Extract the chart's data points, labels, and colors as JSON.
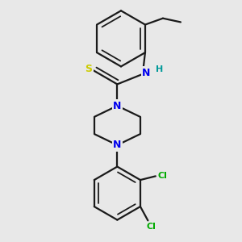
{
  "background_color": "#e8e8e8",
  "bond_color": "#1a1a1a",
  "bond_width": 1.6,
  "atom_colors": {
    "N": "#0000ee",
    "S": "#cccc00",
    "Cl": "#00aa00",
    "H": "#009999",
    "C": "#1a1a1a"
  },
  "font_size_atom": 9,
  "font_size_h": 8
}
